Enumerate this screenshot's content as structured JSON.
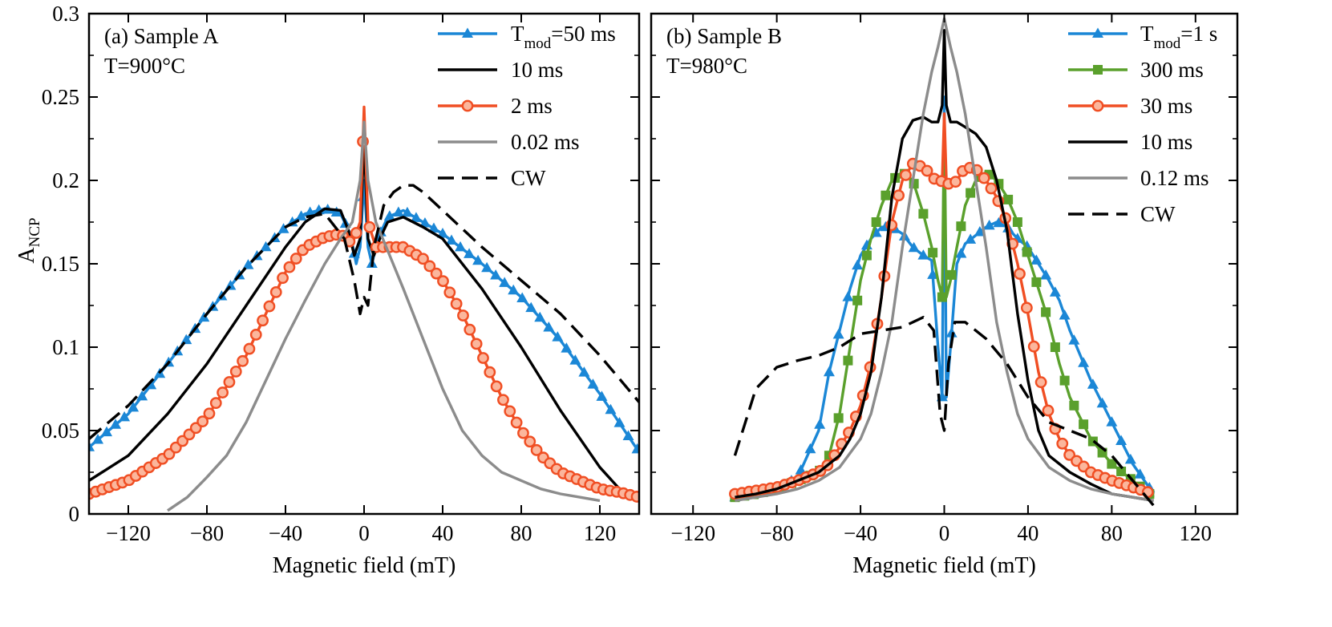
{
  "chart_data": [
    {
      "type": "line",
      "panel_label": "(a) Sample A",
      "condition": "T=900°C",
      "xlabel": "Magnetic field (mT)",
      "ylabel_main": "A",
      "ylabel_sub": "NCP",
      "xlim": [
        -140,
        140
      ],
      "ylim": [
        0,
        0.3
      ],
      "xticks": [
        -120,
        -80,
        -40,
        0,
        40,
        80,
        120
      ],
      "xtick_labels": [
        "−120",
        "−80",
        "−40",
        "0",
        "40",
        "80",
        "120"
      ],
      "yticks": [
        0,
        0.05,
        0.1,
        0.15,
        0.2,
        0.25,
        0.3
      ],
      "ytick_labels": [
        "0",
        "0.05",
        "0.1",
        "0.15",
        "0.2",
        "0.25",
        "0.3"
      ],
      "legend_position": "top-right",
      "series": [
        {
          "name": "Tmod=50 ms",
          "label_main": "T",
          "label_sub": "mod",
          "label_rest": "=50 ms",
          "color": "#1b87d6",
          "marker": "triangle",
          "dash": "",
          "x": [
            -140,
            -120,
            -100,
            -80,
            -60,
            -40,
            -30,
            -20,
            -12,
            -7,
            -4,
            -2,
            0,
            2,
            4,
            7,
            12,
            20,
            30,
            40,
            60,
            80,
            100,
            120,
            140
          ],
          "y": [
            0.04,
            0.06,
            0.09,
            0.12,
            0.148,
            0.172,
            0.18,
            0.183,
            0.18,
            0.168,
            0.15,
            0.16,
            0.2,
            0.16,
            0.15,
            0.165,
            0.178,
            0.182,
            0.175,
            0.168,
            0.15,
            0.13,
            0.104,
            0.072,
            0.037
          ]
        },
        {
          "name": "10 ms",
          "label_main": "10 ms",
          "label_sub": "",
          "label_rest": "",
          "color": "#000000",
          "marker": "none",
          "dash": "",
          "x": [
            -140,
            -120,
            -100,
            -80,
            -60,
            -40,
            -30,
            -20,
            -12,
            -8,
            -5,
            -2,
            0,
            2,
            5,
            8,
            12,
            20,
            30,
            40,
            60,
            80,
            100,
            120,
            130,
            140
          ],
          "y": [
            0.02,
            0.035,
            0.06,
            0.09,
            0.125,
            0.16,
            0.175,
            0.183,
            0.182,
            0.17,
            0.155,
            0.165,
            0.225,
            0.165,
            0.155,
            0.165,
            0.175,
            0.178,
            0.172,
            0.165,
            0.135,
            0.1,
            0.062,
            0.028,
            0.015,
            0.008
          ]
        },
        {
          "name": "2 ms",
          "label_main": "2 ms",
          "label_sub": "",
          "label_rest": "",
          "color": "#f04e23",
          "marker": "circle",
          "dash": "",
          "x": [
            -140,
            -120,
            -100,
            -80,
            -60,
            -50,
            -40,
            -30,
            -20,
            -12,
            -6,
            -2,
            0,
            2,
            6,
            12,
            20,
            30,
            40,
            50,
            60,
            70,
            80,
            90,
            100,
            110,
            120,
            130,
            140
          ],
          "y": [
            0.012,
            0.02,
            0.035,
            0.058,
            0.095,
            0.12,
            0.145,
            0.16,
            0.166,
            0.168,
            0.162,
            0.175,
            0.244,
            0.175,
            0.16,
            0.16,
            0.16,
            0.153,
            0.14,
            0.12,
            0.095,
            0.07,
            0.05,
            0.035,
            0.025,
            0.02,
            0.015,
            0.013,
            0.01
          ]
        },
        {
          "name": "0.02 ms",
          "label_main": "0.02 ms",
          "label_sub": "",
          "label_rest": "",
          "color": "#8c8c8c",
          "marker": "none",
          "dash": "",
          "x": [
            -100,
            -90,
            -80,
            -70,
            -60,
            -50,
            -40,
            -30,
            -20,
            -12,
            -6,
            -2,
            0,
            2,
            6,
            12,
            20,
            30,
            40,
            50,
            60,
            70,
            80,
            90,
            100,
            110,
            120
          ],
          "y": [
            0.002,
            0.01,
            0.022,
            0.035,
            0.055,
            0.08,
            0.105,
            0.128,
            0.15,
            0.165,
            0.175,
            0.2,
            0.235,
            0.2,
            0.175,
            0.158,
            0.135,
            0.105,
            0.075,
            0.05,
            0.035,
            0.025,
            0.02,
            0.015,
            0.012,
            0.01,
            0.008
          ]
        },
        {
          "name": "CW",
          "label_main": "CW",
          "label_sub": "",
          "label_rest": "",
          "color": "#000000",
          "marker": "none",
          "dash": "20 10",
          "x": [
            -140,
            -120,
            -100,
            -80,
            -60,
            -40,
            -30,
            -20,
            -10,
            -5,
            -2,
            0,
            2,
            5,
            10,
            15,
            20,
            25,
            30,
            40,
            60,
            80,
            100,
            120,
            140
          ],
          "y": [
            0.045,
            0.065,
            0.09,
            0.12,
            0.148,
            0.172,
            0.178,
            0.18,
            0.165,
            0.14,
            0.12,
            0.13,
            0.125,
            0.16,
            0.185,
            0.193,
            0.197,
            0.197,
            0.193,
            0.182,
            0.16,
            0.14,
            0.12,
            0.095,
            0.067
          ]
        }
      ]
    },
    {
      "type": "line",
      "panel_label": "(b) Sample B",
      "condition": "T=980°C",
      "xlabel": "Magnetic field (mT)",
      "xlim": [
        -140,
        140
      ],
      "ylim": [
        0,
        0.3
      ],
      "xticks": [
        -120,
        -80,
        -40,
        0,
        40,
        80,
        120
      ],
      "xtick_labels": [
        "−120",
        "−80",
        "−40",
        "0",
        "40",
        "80",
        "120"
      ],
      "yticks": [
        0,
        0.05,
        0.1,
        0.15,
        0.2,
        0.25,
        0.3
      ],
      "legend_position": "top-right",
      "series": [
        {
          "name": "Tmod=1 s",
          "label_main": "T",
          "label_sub": "mod",
          "label_rest": "=1 s",
          "color": "#1b87d6",
          "marker": "triangle",
          "dash": "",
          "x": [
            -100,
            -90,
            -80,
            -70,
            -60,
            -55,
            -50,
            -45,
            -40,
            -35,
            -30,
            -25,
            -20,
            -15,
            -10,
            -6,
            -3,
            -1,
            0,
            1,
            3,
            6,
            10,
            15,
            20,
            25,
            30,
            35,
            40,
            45,
            50,
            55,
            60,
            70,
            80,
            90,
            100
          ],
          "y": [
            0.01,
            0.012,
            0.015,
            0.022,
            0.05,
            0.085,
            0.11,
            0.135,
            0.155,
            0.165,
            0.172,
            0.172,
            0.168,
            0.16,
            0.155,
            0.152,
            0.1,
            0.07,
            0.25,
            0.07,
            0.1,
            0.15,
            0.162,
            0.167,
            0.172,
            0.175,
            0.172,
            0.165,
            0.16,
            0.15,
            0.14,
            0.128,
            0.11,
            0.08,
            0.055,
            0.03,
            0.012
          ]
        },
        {
          "name": "300 ms",
          "label_main": "300 ms",
          "label_sub": "",
          "label_rest": "",
          "color": "#5aa02c",
          "marker": "square",
          "dash": "",
          "x": [
            -100,
            -90,
            -80,
            -70,
            -60,
            -55,
            -50,
            -45,
            -40,
            -35,
            -30,
            -25,
            -20,
            -15,
            -10,
            -6,
            -3,
            -1,
            0,
            1,
            3,
            6,
            10,
            15,
            20,
            25,
            30,
            35,
            40,
            45,
            50,
            55,
            60,
            70,
            80,
            90,
            100
          ],
          "y": [
            0.01,
            0.012,
            0.015,
            0.02,
            0.025,
            0.035,
            0.06,
            0.1,
            0.14,
            0.165,
            0.185,
            0.2,
            0.205,
            0.2,
            0.18,
            0.16,
            0.14,
            0.13,
            0.235,
            0.13,
            0.14,
            0.16,
            0.185,
            0.2,
            0.205,
            0.2,
            0.19,
            0.175,
            0.155,
            0.135,
            0.115,
            0.09,
            0.07,
            0.045,
            0.03,
            0.02,
            0.01
          ]
        },
        {
          "name": "30 ms",
          "label_main": "30 ms",
          "label_sub": "",
          "label_rest": "",
          "color": "#f04e23",
          "marker": "circle",
          "dash": "",
          "x": [
            -100,
            -90,
            -80,
            -70,
            -60,
            -55,
            -50,
            -45,
            -40,
            -35,
            -30,
            -25,
            -20,
            -15,
            -10,
            -6,
            -3,
            -1,
            0,
            1,
            3,
            6,
            10,
            15,
            20,
            25,
            30,
            35,
            40,
            45,
            50,
            55,
            60,
            70,
            80,
            90,
            100
          ],
          "y": [
            0.012,
            0.014,
            0.016,
            0.02,
            0.025,
            0.03,
            0.04,
            0.05,
            0.065,
            0.09,
            0.13,
            0.175,
            0.2,
            0.21,
            0.208,
            0.203,
            0.198,
            0.2,
            0.24,
            0.2,
            0.196,
            0.2,
            0.208,
            0.207,
            0.2,
            0.19,
            0.175,
            0.15,
            0.12,
            0.085,
            0.06,
            0.045,
            0.035,
            0.025,
            0.02,
            0.016,
            0.012
          ]
        },
        {
          "name": "10 ms",
          "label_main": "10 ms",
          "label_sub": "",
          "label_rest": "",
          "color": "#000000",
          "marker": "none",
          "dash": "",
          "x": [
            -100,
            -90,
            -80,
            -70,
            -60,
            -50,
            -45,
            -40,
            -35,
            -30,
            -25,
            -20,
            -15,
            -10,
            -6,
            -3,
            -1,
            0,
            1,
            3,
            6,
            10,
            15,
            20,
            25,
            30,
            35,
            40,
            45,
            50,
            60,
            70,
            80,
            90,
            100
          ],
          "y": [
            0.01,
            0.012,
            0.015,
            0.02,
            0.025,
            0.035,
            0.045,
            0.06,
            0.085,
            0.13,
            0.19,
            0.225,
            0.236,
            0.238,
            0.235,
            0.235,
            0.245,
            0.29,
            0.245,
            0.235,
            0.235,
            0.232,
            0.228,
            0.22,
            0.2,
            0.17,
            0.12,
            0.08,
            0.05,
            0.035,
            0.025,
            0.018,
            0.012,
            0.01,
            0.008
          ]
        },
        {
          "name": "0.12 ms",
          "label_main": "0.12 ms",
          "label_sub": "",
          "label_rest": "",
          "color": "#8c8c8c",
          "marker": "none",
          "dash": "",
          "x": [
            -100,
            -90,
            -80,
            -70,
            -60,
            -50,
            -40,
            -35,
            -30,
            -25,
            -20,
            -15,
            -10,
            -6,
            -3,
            0,
            3,
            6,
            10,
            15,
            20,
            25,
            30,
            35,
            40,
            50,
            60,
            70,
            80,
            90,
            100
          ],
          "y": [
            0.008,
            0.01,
            0.012,
            0.015,
            0.02,
            0.028,
            0.045,
            0.06,
            0.085,
            0.115,
            0.16,
            0.2,
            0.24,
            0.265,
            0.28,
            0.297,
            0.28,
            0.265,
            0.24,
            0.2,
            0.16,
            0.115,
            0.085,
            0.06,
            0.045,
            0.028,
            0.02,
            0.015,
            0.012,
            0.01,
            0.008
          ]
        },
        {
          "name": "CW",
          "label_main": "CW",
          "label_sub": "",
          "label_rest": "",
          "color": "#000000",
          "marker": "none",
          "dash": "20 10",
          "x": [
            -100,
            -95,
            -90,
            -80,
            -70,
            -60,
            -50,
            -40,
            -30,
            -20,
            -10,
            -5,
            -2,
            0,
            2,
            5,
            10,
            20,
            30,
            40,
            50,
            60,
            70,
            80,
            90,
            100
          ],
          "y": [
            0.035,
            0.055,
            0.075,
            0.088,
            0.092,
            0.095,
            0.1,
            0.108,
            0.11,
            0.112,
            0.118,
            0.11,
            0.06,
            0.05,
            0.09,
            0.115,
            0.115,
            0.105,
            0.09,
            0.07,
            0.055,
            0.05,
            0.045,
            0.035,
            0.02,
            0.005
          ]
        }
      ]
    }
  ]
}
